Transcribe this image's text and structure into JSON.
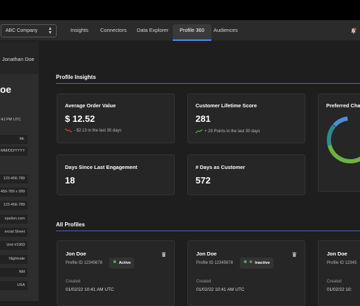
{
  "nav": {
    "company": "ABC Company",
    "tabs": [
      "Insights",
      "Connectors",
      "Data Explorer",
      "Profile 360",
      "Audiences"
    ],
    "active_tab": "Profile 360"
  },
  "sidebar": {
    "user": "Jonathan Doe",
    "name_fragment": "oe",
    "timestamp": ":41 PM UTC",
    "rows": [
      "Mr.",
      "MM/DD/YYYY",
      "123-456-789",
      "456-789 x 999",
      "123-456-789",
      "epsilon.com",
      "ercial Street",
      "Unit #1903",
      "Nightvale",
      "NM",
      "USA"
    ]
  },
  "insights": {
    "title": "Profile Insights",
    "aov": {
      "title": "Average Order Value",
      "value": "$ 12.52",
      "sub": "- $2.13 in the last 30 days"
    },
    "clv": {
      "title": "Customer Lifetime Score",
      "value": "281",
      "sub": "+ 29 Points in the last 30 days"
    },
    "channel": {
      "title": "Preferred Cha"
    },
    "engagement": {
      "title": "Days Since Last Engagement",
      "value": "18"
    },
    "customer_days": {
      "title": "# Days as Customer",
      "value": "572"
    }
  },
  "profiles": {
    "title": "All Profiles",
    "items": [
      {
        "name": "Jon Doe",
        "id": "Profile ID 12345678",
        "status": "Active",
        "created_label": "Created",
        "created": "01/02/22 10:41 AM UTC"
      },
      {
        "name": "Jon Doe",
        "id": "Profile ID 12345678",
        "status": "Inactive",
        "created_label": "Created",
        "created": "01/02/22 10:41 AM UTC"
      },
      {
        "name": "Jon Doe",
        "id": "Profile ID 12345",
        "created_label": "Created",
        "created": "01/02/22 10:"
      }
    ]
  },
  "colors": {
    "accent": "#4a8cff",
    "up": "#4caf50",
    "down": "#e53935",
    "donut_green": "#6db33f",
    "donut_blue": "#4a90d9",
    "donut_teal": "#2e8b8b"
  },
  "icons": {
    "bell": "bell-icon",
    "trash": "trash-icon",
    "trend_down": "trend-down-icon",
    "trend_up": "trend-up-icon"
  }
}
